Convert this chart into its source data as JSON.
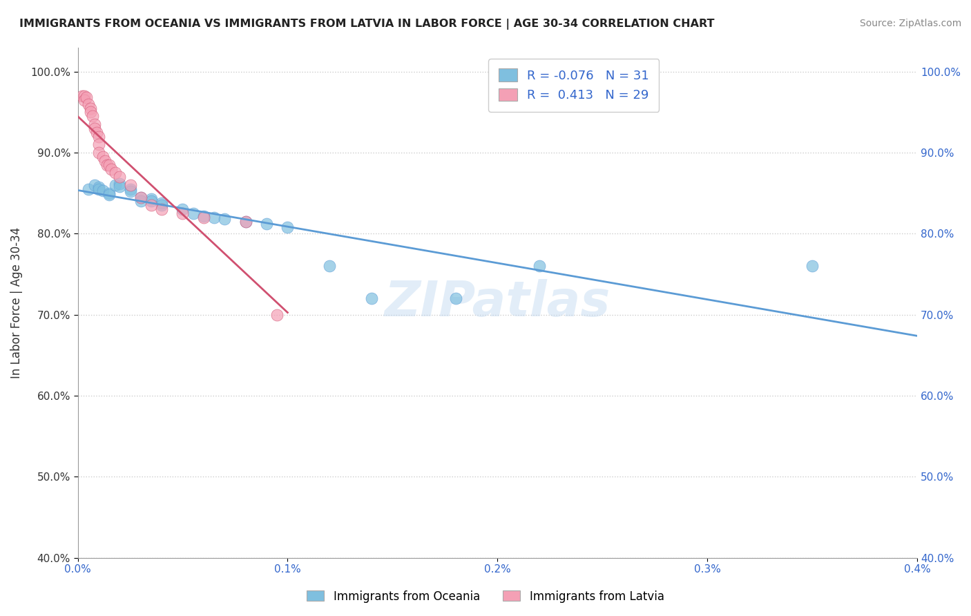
{
  "title": "IMMIGRANTS FROM OCEANIA VS IMMIGRANTS FROM LATVIA IN LABOR FORCE | AGE 30-34 CORRELATION CHART",
  "source": "Source: ZipAtlas.com",
  "ylabel": "In Labor Force | Age 30-34",
  "xlim": [
    0.0,
    0.004
  ],
  "ylim": [
    0.4,
    1.03
  ],
  "xticks": [
    0.0,
    0.001,
    0.002,
    0.003,
    0.004
  ],
  "xtick_labels": [
    "0.0%",
    "0.1%",
    "0.2%",
    "0.3%",
    "0.4%"
  ],
  "yticks": [
    0.4,
    0.5,
    0.6,
    0.7,
    0.8,
    0.9,
    1.0
  ],
  "ytick_labels": [
    "40.0%",
    "50.0%",
    "60.0%",
    "70.0%",
    "80.0%",
    "90.0%",
    "100.0%"
  ],
  "blue_color": "#7fbfdf",
  "pink_color": "#f4a0b5",
  "blue_line_color": "#5b9bd5",
  "pink_line_color": "#d05070",
  "legend_blue_r": "-0.076",
  "legend_blue_n": "31",
  "legend_pink_r": "0.413",
  "legend_pink_n": "29",
  "watermark": "ZIPatlas",
  "blue_points_x": [
    5e-05,
    8e-05,
    0.0001,
    0.0001,
    0.00012,
    0.00015,
    0.00015,
    0.00018,
    0.0002,
    0.0002,
    0.00025,
    0.00025,
    0.0003,
    0.0003,
    0.00035,
    0.00035,
    0.0004,
    0.0004,
    0.0005,
    0.00055,
    0.0006,
    0.00065,
    0.0007,
    0.0008,
    0.0009,
    0.001,
    0.0012,
    0.0014,
    0.0018,
    0.0022,
    0.0035
  ],
  "blue_points_y": [
    0.855,
    0.86,
    0.857,
    0.855,
    0.853,
    0.85,
    0.848,
    0.86,
    0.862,
    0.858,
    0.855,
    0.852,
    0.845,
    0.84,
    0.843,
    0.84,
    0.838,
    0.835,
    0.83,
    0.825,
    0.822,
    0.82,
    0.818,
    0.815,
    0.812,
    0.808,
    0.76,
    0.72,
    0.72,
    0.76,
    0.76
  ],
  "pink_points_x": [
    2e-05,
    3e-05,
    3e-05,
    4e-05,
    5e-05,
    6e-05,
    6e-05,
    7e-05,
    8e-05,
    8e-05,
    9e-05,
    0.0001,
    0.0001,
    0.0001,
    0.00012,
    0.00013,
    0.00014,
    0.00015,
    0.00016,
    0.00018,
    0.0002,
    0.00025,
    0.0003,
    0.00035,
    0.0004,
    0.0005,
    0.0006,
    0.0008,
    0.00095
  ],
  "pink_points_y": [
    0.97,
    0.97,
    0.965,
    0.968,
    0.96,
    0.955,
    0.95,
    0.945,
    0.935,
    0.93,
    0.925,
    0.92,
    0.91,
    0.9,
    0.895,
    0.89,
    0.885,
    0.885,
    0.88,
    0.875,
    0.87,
    0.86,
    0.845,
    0.835,
    0.83,
    0.825,
    0.82,
    0.815,
    0.7
  ]
}
